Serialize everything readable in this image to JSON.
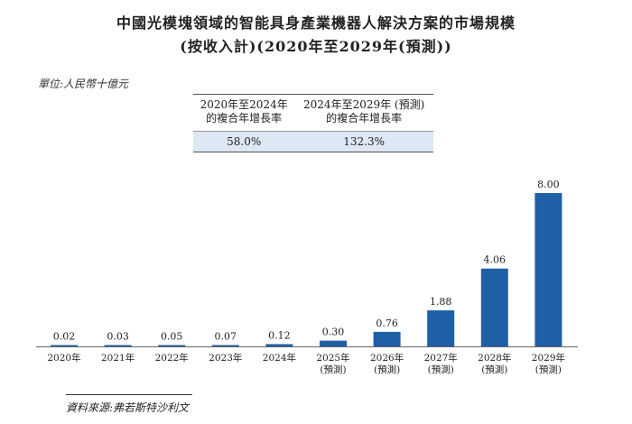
{
  "title_line1": "中國光模塊領域的智能具身產業機器人解決方案的市場規模",
  "title_line2": "(按收入計)(2020年至2029年(預測))",
  "unit_label": "單位:人民幣十億元",
  "cagr_table": {
    "headers": [
      "2020年至2024年\n的複合年增長率",
      "2024年至2029年 (預測)\n的複合年增長率"
    ],
    "values": [
      "58.0%",
      "132.3%"
    ]
  },
  "source": "資料來源:弗若斯特沙利文",
  "chart_data": {
    "type": "bar",
    "categories": [
      "2020年",
      "2021年",
      "2022年",
      "2023年",
      "2024年",
      "2025年\n(預測)",
      "2026年\n(預測)",
      "2027年\n(預測)",
      "2028年\n(預測)",
      "2029年\n(預測)"
    ],
    "values": [
      0.02,
      0.03,
      0.05,
      0.07,
      0.12,
      0.3,
      0.76,
      1.88,
      4.06,
      8.0
    ],
    "value_labels": [
      "0.02",
      "0.03",
      "0.05",
      "0.07",
      "0.12",
      "0.30",
      "0.76",
      "1.88",
      "4.06",
      "8.00"
    ],
    "bar_color": "#1f5fa6",
    "ylim": [
      0,
      8.0
    ]
  }
}
